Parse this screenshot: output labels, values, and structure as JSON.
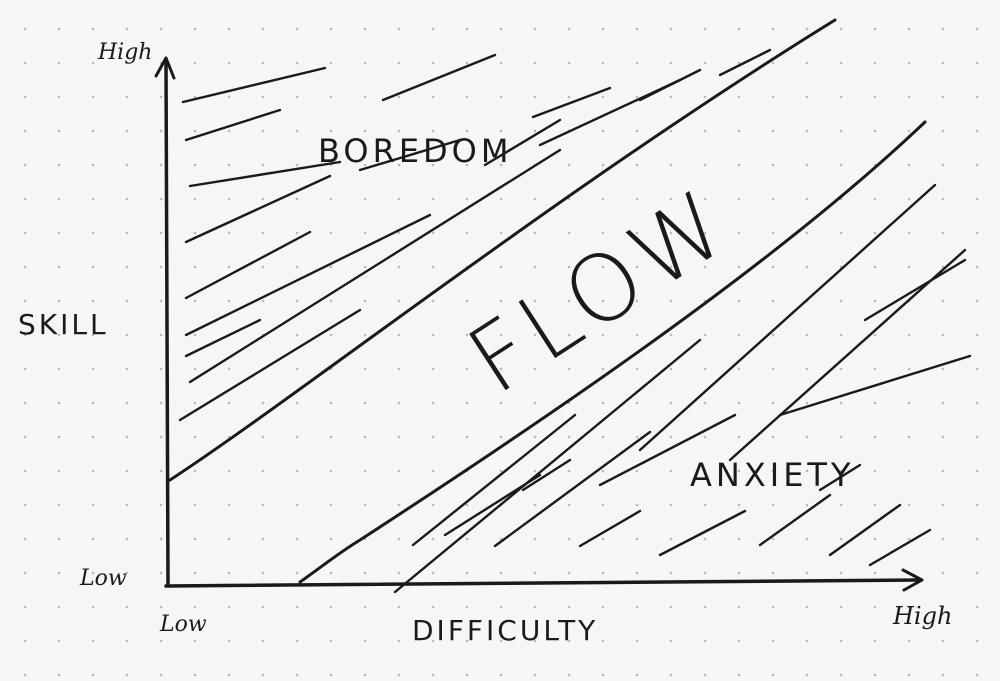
{
  "diagram": {
    "y_axis": {
      "label": "SKILL",
      "high": "High",
      "low": "Low"
    },
    "x_axis": {
      "label": "DIFFICULTY",
      "high": "High",
      "low": "Low"
    },
    "regions": {
      "boredom": "BOREDOM",
      "flow": "FLOW",
      "anxiety": "ANXIETY"
    },
    "colors": {
      "ink": "#1a1a1a",
      "paper": "#f6f6f5",
      "dots": "#b9b9b9"
    }
  }
}
